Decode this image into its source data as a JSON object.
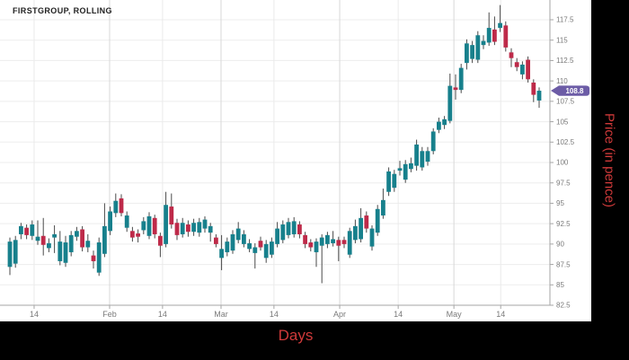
{
  "title": "FIRSTGROUP, ROLLING",
  "axes": {
    "x_label": "Days",
    "y_label": "Price (in pence)"
  },
  "badge": {
    "label": "108.8",
    "color": "#6C5CA6",
    "text_color": "#ffffff"
  },
  "colors": {
    "up_candle": "#17808C",
    "down_candle": "#BE2A49",
    "wick": "#4a4a4a",
    "grid_minor": "#eaeaea",
    "grid_month": "#d8d8d8",
    "axis_line": "#a6a6a6",
    "tick_label": "#7a7a7a",
    "axis_title_red": "#d03a3a",
    "frame_black": "#000000",
    "panel_white": "#ffffff"
  },
  "chart_data": {
    "type": "candlestick",
    "title": "FIRSTGROUP, ROLLING",
    "xlabel": "Days",
    "ylabel": "Price (in pence)",
    "ylim": [
      82.5,
      119.5
    ],
    "grid": true,
    "y_ticks": [
      82.5,
      85,
      87.5,
      90,
      92.5,
      95,
      97.5,
      100,
      102.5,
      105,
      107.5,
      110,
      112.5,
      115,
      117.5
    ],
    "x_ticks": [
      {
        "label": "14",
        "index": 4.35,
        "month": false
      },
      {
        "label": "Feb",
        "index": 17.9,
        "month": true
      },
      {
        "label": "14",
        "index": 27.4,
        "month": false
      },
      {
        "label": "Mar",
        "index": 37.9,
        "month": true
      },
      {
        "label": "14",
        "index": 47.4,
        "month": false
      },
      {
        "label": "Apr",
        "index": 59.2,
        "month": true
      },
      {
        "label": "14",
        "index": 69.7,
        "month": false
      },
      {
        "label": "May",
        "index": 79.7,
        "month": true
      },
      {
        "label": "14",
        "index": 88.1,
        "month": false
      }
    ],
    "last_close": 108.8,
    "ohlc_order": [
      "open",
      "high",
      "low",
      "close"
    ],
    "candles": [
      [
        87.2,
        90.8,
        86.2,
        90.3
      ],
      [
        87.6,
        91.0,
        87.1,
        90.5
      ],
      [
        91.2,
        92.6,
        90.6,
        92.2
      ],
      [
        92.0,
        92.4,
        90.6,
        91.1
      ],
      [
        91.0,
        92.9,
        90.5,
        92.4
      ],
      [
        90.4,
        92.9,
        89.9,
        90.9
      ],
      [
        91.0,
        93.2,
        88.6,
        89.9
      ],
      [
        89.5,
        90.7,
        89.0,
        90.1
      ],
      [
        90.8,
        92.3,
        88.9,
        91.2
      ],
      [
        87.9,
        91.6,
        87.4,
        90.3
      ],
      [
        87.7,
        91.0,
        87.2,
        90.2
      ],
      [
        89.0,
        91.6,
        88.5,
        91.1
      ],
      [
        90.9,
        92.1,
        90.4,
        91.6
      ],
      [
        91.8,
        92.2,
        89.1,
        89.6
      ],
      [
        89.6,
        91.2,
        89.0,
        90.4
      ],
      [
        88.6,
        89.2,
        87.0,
        87.9
      ],
      [
        86.5,
        90.8,
        86.1,
        90.2
      ],
      [
        88.8,
        95.0,
        88.4,
        92.2
      ],
      [
        91.6,
        94.6,
        91.1,
        94.0
      ],
      [
        93.8,
        96.2,
        93.3,
        95.3
      ],
      [
        95.6,
        96.1,
        93.4,
        93.8
      ],
      [
        92.0,
        94.0,
        91.5,
        93.5
      ],
      [
        91.6,
        92.1,
        90.3,
        90.8
      ],
      [
        91.3,
        91.8,
        90.2,
        90.9
      ],
      [
        91.7,
        93.3,
        91.2,
        92.8
      ],
      [
        91.0,
        93.9,
        90.6,
        93.4
      ],
      [
        93.2,
        93.6,
        90.7,
        91.2
      ],
      [
        91.0,
        91.4,
        88.4,
        89.8
      ],
      [
        90.0,
        96.4,
        89.6,
        94.8
      ],
      [
        94.6,
        96.2,
        91.9,
        92.4
      ],
      [
        92.6,
        93.1,
        90.5,
        91.1
      ],
      [
        91.2,
        93.2,
        90.8,
        92.6
      ],
      [
        92.4,
        92.9,
        90.9,
        91.5
      ],
      [
        91.5,
        93.1,
        91.0,
        92.6
      ],
      [
        91.4,
        93.2,
        90.9,
        92.7
      ],
      [
        91.9,
        93.4,
        91.4,
        93.0
      ],
      [
        91.4,
        92.6,
        90.3,
        92.2
      ],
      [
        90.8,
        91.2,
        89.6,
        90.0
      ],
      [
        88.3,
        91.1,
        86.8,
        89.4
      ],
      [
        89.0,
        90.8,
        88.5,
        90.3
      ],
      [
        89.2,
        91.7,
        88.8,
        91.2
      ],
      [
        90.5,
        92.7,
        90.1,
        91.9
      ],
      [
        90.0,
        91.7,
        89.6,
        91.2
      ],
      [
        89.4,
        90.6,
        89.0,
        90.1
      ],
      [
        88.9,
        90.1,
        87.0,
        89.6
      ],
      [
        90.4,
        90.9,
        89.2,
        89.6
      ],
      [
        88.3,
        90.5,
        87.7,
        90.0
      ],
      [
        88.7,
        90.8,
        88.3,
        90.3
      ],
      [
        90.0,
        92.7,
        89.6,
        91.9
      ],
      [
        90.5,
        92.9,
        90.1,
        92.4
      ],
      [
        91.1,
        93.2,
        90.7,
        92.7
      ],
      [
        91.2,
        93.3,
        90.8,
        92.8
      ],
      [
        92.4,
        92.8,
        90.7,
        91.2
      ],
      [
        91.1,
        91.5,
        89.5,
        90.0
      ],
      [
        90.2,
        90.6,
        89.1,
        89.6
      ],
      [
        89.0,
        90.7,
        87.2,
        90.3
      ],
      [
        89.8,
        91.2,
        85.2,
        90.8
      ],
      [
        90.0,
        91.5,
        89.5,
        91.1
      ],
      [
        90.1,
        91.6,
        89.7,
        90.6
      ],
      [
        90.5,
        90.9,
        87.9,
        89.8
      ],
      [
        90.5,
        90.9,
        89.5,
        90.0
      ],
      [
        88.7,
        92.0,
        88.3,
        91.6
      ],
      [
        90.5,
        93.0,
        90.1,
        92.2
      ],
      [
        90.6,
        94.4,
        90.2,
        93.2
      ],
      [
        93.5,
        94.0,
        91.4,
        91.9
      ],
      [
        89.7,
        92.3,
        89.2,
        91.9
      ],
      [
        91.4,
        94.8,
        91.0,
        94.3
      ],
      [
        93.5,
        96.8,
        93.1,
        95.4
      ],
      [
        96.4,
        99.4,
        95.9,
        98.9
      ],
      [
        96.9,
        99.1,
        96.4,
        98.6
      ],
      [
        99.0,
        100.2,
        98.4,
        99.3
      ],
      [
        97.9,
        100.3,
        97.5,
        99.8
      ],
      [
        99.2,
        100.6,
        98.8,
        99.9
      ],
      [
        99.6,
        102.8,
        99.0,
        102.2
      ],
      [
        99.4,
        101.9,
        99.0,
        101.4
      ],
      [
        100.1,
        101.9,
        99.6,
        101.4
      ],
      [
        101.4,
        104.2,
        101.0,
        103.8
      ],
      [
        104.0,
        105.5,
        103.6,
        105.0
      ],
      [
        104.6,
        105.7,
        104.1,
        105.3
      ],
      [
        105.1,
        110.9,
        104.8,
        109.4
      ],
      [
        109.2,
        110.8,
        107.7,
        108.9
      ],
      [
        108.9,
        112.1,
        108.5,
        111.6
      ],
      [
        112.2,
        115.1,
        111.4,
        114.6
      ],
      [
        112.7,
        114.9,
        112.2,
        114.4
      ],
      [
        112.6,
        116.1,
        112.2,
        115.6
      ],
      [
        114.4,
        115.6,
        113.9,
        114.9
      ],
      [
        114.7,
        118.4,
        114.3,
        116.5
      ],
      [
        116.3,
        117.9,
        114.4,
        114.8
      ],
      [
        116.5,
        119.3,
        116.0,
        117.1
      ],
      [
        116.8,
        117.3,
        113.6,
        114.1
      ],
      [
        113.5,
        114.0,
        111.7,
        112.8
      ],
      [
        112.3,
        112.8,
        111.2,
        111.7
      ],
      [
        110.8,
        112.4,
        110.2,
        112.0
      ],
      [
        112.6,
        113.0,
        109.8,
        110.2
      ],
      [
        109.8,
        110.2,
        107.4,
        108.3
      ],
      [
        107.6,
        109.2,
        106.7,
        108.8
      ]
    ]
  }
}
